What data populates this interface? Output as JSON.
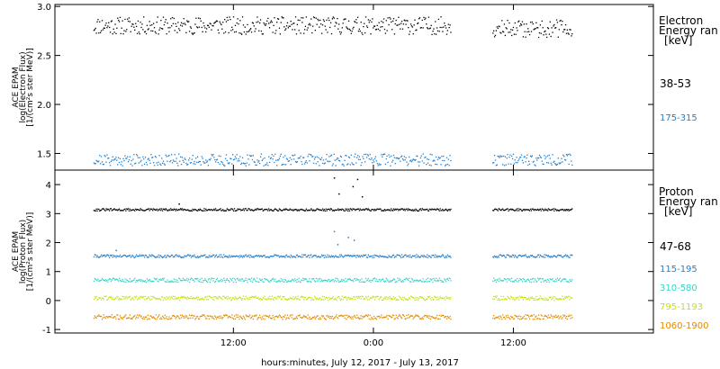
{
  "chart_data": [
    {
      "type": "scatter",
      "panel": "electron",
      "ylabel_lines": [
        "ACE EPAM",
        "log(Electron Flux)",
        "[1/(cm²s ster MeV)]"
      ],
      "ylim": [
        1.33,
        3.02
      ],
      "yticks": [
        1.5,
        2.0,
        2.5,
        3.0
      ],
      "ytick_labels": [
        "1.5",
        "2.0",
        "2.5",
        "3.0"
      ],
      "legend_title": [
        "Electron",
        "Energy ran",
        "[keV]"
      ],
      "series": [
        {
          "name": "38-53",
          "color": "#000000",
          "segments": [
            [
              0,
              30.6,
              2.81,
              0.09,
              11
            ],
            [
              34.2,
              41.0,
              2.78,
              0.09,
              12
            ]
          ]
        },
        {
          "name": "175-315",
          "color": "#1f7fd0",
          "segments": [
            [
              0,
              30.6,
              1.44,
              0.06,
              21
            ],
            [
              34.2,
              41.0,
              1.44,
              0.06,
              22
            ]
          ]
        }
      ]
    },
    {
      "type": "scatter",
      "panel": "proton",
      "ylabel_lines": [
        "ACE EPAM",
        "log(Proton Flux)",
        "[1/(cm²s ster MeV)]"
      ],
      "ylim": [
        -1.12,
        4.5
      ],
      "yticks": [
        -1,
        0,
        1,
        2,
        3,
        4
      ],
      "ytick_labels": [
        "-1",
        "0",
        "1",
        "2",
        "3",
        "4"
      ],
      "legend_title": [
        "Proton",
        "Energy ran",
        "[keV]"
      ],
      "series": [
        {
          "name": "47-68",
          "color": "#000000",
          "segments": [
            [
              0,
              30.6,
              3.15,
              0.04,
              31
            ],
            [
              34.2,
              41.0,
              3.15,
              0.04,
              32
            ]
          ],
          "spikes": [
            [
              20.6,
              4.25
            ],
            [
              21.0,
              3.7
            ],
            [
              22.2,
              3.95
            ],
            [
              22.6,
              4.2
            ],
            [
              23.0,
              3.6
            ],
            [
              7.3,
              3.35
            ]
          ]
        },
        {
          "name": "115-195",
          "color": "#1f7fd0",
          "segments": [
            [
              0,
              30.6,
              1.55,
              0.05,
              41
            ],
            [
              34.2,
              41.0,
              1.55,
              0.05,
              42
            ]
          ],
          "spikes": [
            [
              20.6,
              2.4
            ],
            [
              20.9,
              1.95
            ],
            [
              21.8,
              2.2
            ],
            [
              22.3,
              2.1
            ],
            [
              1.9,
              1.75
            ]
          ]
        },
        {
          "name": "310-580",
          "color": "#2fd6c8",
          "segments": [
            [
              0,
              30.6,
              0.72,
              0.07,
              51
            ],
            [
              34.2,
              41.0,
              0.72,
              0.07,
              52
            ]
          ]
        },
        {
          "name": "795-1193",
          "color": "#c8e010",
          "segments": [
            [
              0,
              30.6,
              0.1,
              0.07,
              61
            ],
            [
              34.2,
              41.0,
              0.1,
              0.07,
              62
            ]
          ]
        },
        {
          "name": "1060-1900",
          "color": "#e08a00",
          "segments": [
            [
              0,
              30.6,
              -0.55,
              0.08,
              71
            ],
            [
              34.2,
              41.0,
              -0.55,
              0.08,
              72
            ]
          ]
        }
      ]
    }
  ],
  "x_axis": {
    "xlim": [
      -3.3,
      48
    ],
    "ticks": [
      12,
      24,
      36
    ],
    "tick_labels": [
      "12:00",
      "0:00",
      "12:00"
    ],
    "xlabel": "hours:minutes, July 12, 2017 - July 13, 2017"
  },
  "colors": {
    "axis": "#000000",
    "background": "#ffffff"
  }
}
